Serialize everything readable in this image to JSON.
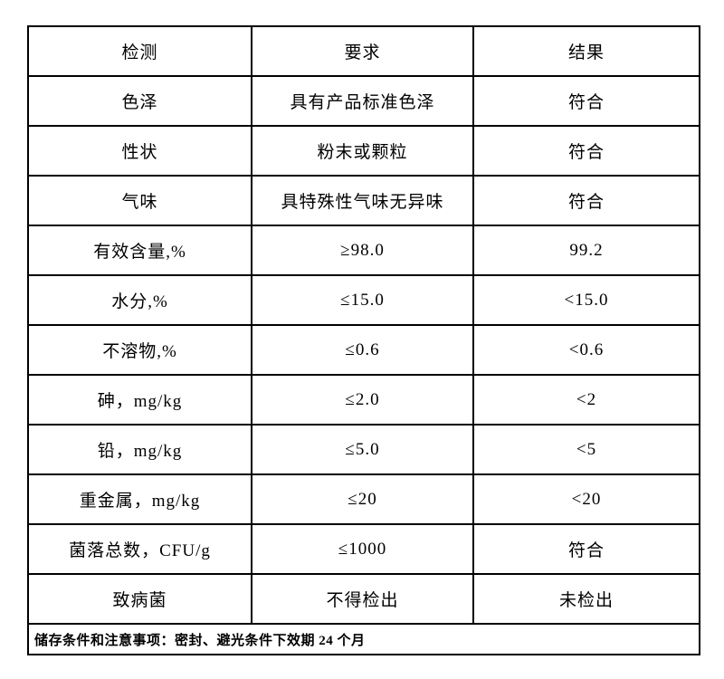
{
  "table": {
    "headers": {
      "test": "检测",
      "requirement": "要求",
      "result": "结果"
    },
    "rows": [
      {
        "test": "色泽",
        "requirement": "具有产品标准色泽",
        "result": "符合"
      },
      {
        "test": "性状",
        "requirement": "粉末或颗粒",
        "result": "符合"
      },
      {
        "test": "气味",
        "requirement": "具特殊性气味无异味",
        "result": "符合"
      },
      {
        "test": "有效含量,%",
        "requirement": "≥98.0",
        "result": "99.2"
      },
      {
        "test": "水分,%",
        "requirement": "≤15.0",
        "result": "<15.0"
      },
      {
        "test": "不溶物,%",
        "requirement": "≤0.6",
        "result": "<0.6"
      },
      {
        "test": "砷，mg/kg",
        "requirement": "≤2.0",
        "result": "<2"
      },
      {
        "test": "铅，mg/kg",
        "requirement": "≤5.0",
        "result": "<5"
      },
      {
        "test": "重金属，mg/kg",
        "requirement": "≤20",
        "result": "<20"
      },
      {
        "test": "菌落总数，CFU/g",
        "requirement": "≤1000",
        "result": "符合"
      },
      {
        "test": "致病菌",
        "requirement": "不得检出",
        "result": "未检出"
      }
    ],
    "footer": "储存条件和注意事项：密封、避光条件下效期 24 个月"
  },
  "colors": {
    "background": "#ffffff",
    "border": "#000000",
    "text": "#000000"
  }
}
